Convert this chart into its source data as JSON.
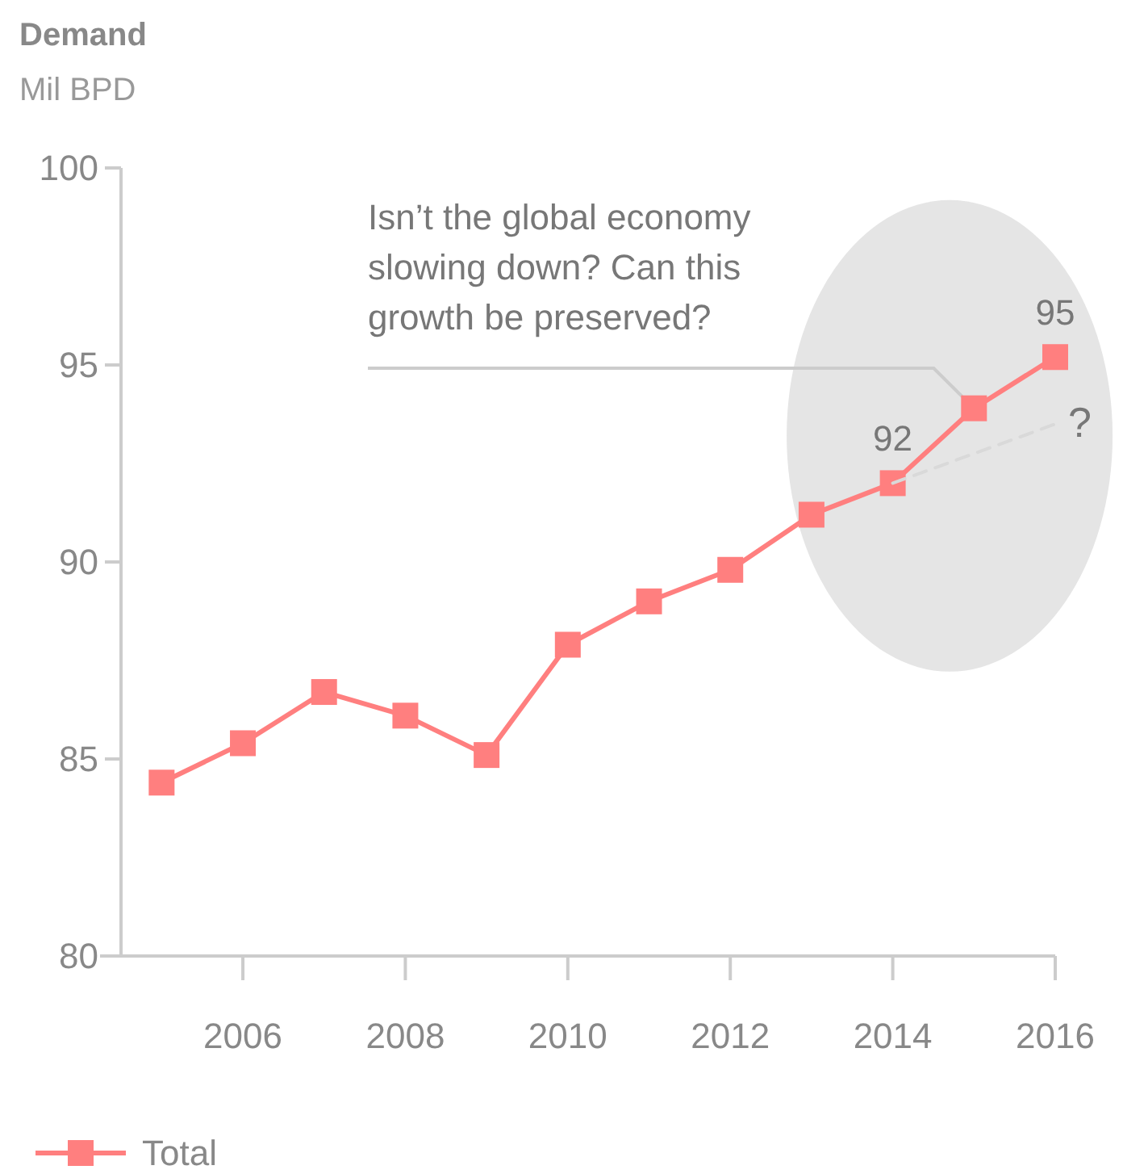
{
  "chart_data": {
    "type": "line",
    "title": "Demand",
    "subtitle": "Mil BPD",
    "x": [
      2005,
      2006,
      2007,
      2008,
      2009,
      2010,
      2011,
      2012,
      2013,
      2014,
      2015,
      2016
    ],
    "series": [
      {
        "name": "Total",
        "color": "#ff7f7f",
        "marker": "square",
        "line_style": "solid",
        "values": [
          84.4,
          85.4,
          86.7,
          86.1,
          85.1,
          87.9,
          89.0,
          89.8,
          91.2,
          92.0,
          93.9,
          95.2
        ],
        "value_labels": [
          null,
          null,
          null,
          null,
          null,
          null,
          null,
          null,
          null,
          "92",
          null,
          "95"
        ]
      },
      {
        "color": "#d9d9d9",
        "marker": "none",
        "line_style": "dashed",
        "x": [
          2014,
          2016
        ],
        "values": [
          92.0,
          93.5
        ]
      }
    ],
    "annotations": [
      {
        "text": "Isn’t the global economy slowing down? Can this growth be preserved?",
        "x": 2015,
        "y": 93.9
      },
      {
        "text": "?",
        "x": 2016,
        "y": 93.5
      }
    ],
    "xlim": [
      2004.5,
      2016
    ],
    "xticks": [
      2006,
      2008,
      2010,
      2012,
      2014,
      2016
    ],
    "ylim": [
      80,
      100
    ],
    "yticks": [
      80,
      85,
      90,
      95,
      100
    ],
    "grid": false,
    "legend": "bottom left"
  }
}
